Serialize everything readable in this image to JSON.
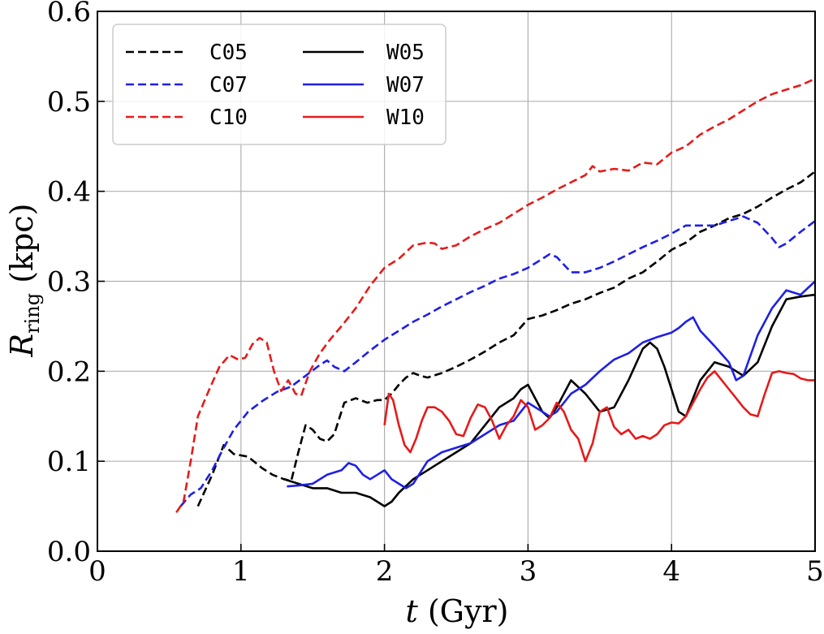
{
  "chart_data": {
    "type": "line",
    "title": "",
    "xlabel": "t (Gyr)",
    "ylabel": "R_ring (kpc)",
    "xlim": [
      0,
      5
    ],
    "ylim": [
      0.0,
      0.6
    ],
    "grid": true,
    "legend_position": "top-left",
    "x_ticks": [
      0,
      1,
      2,
      3,
      4,
      5
    ],
    "y_ticks": [
      0.0,
      0.1,
      0.2,
      0.3,
      0.4,
      0.5,
      0.6
    ],
    "x_tick_labels": [
      "0",
      "1",
      "2",
      "3",
      "4",
      "5"
    ],
    "y_tick_labels": [
      "0.0",
      "0.1",
      "0.2",
      "0.3",
      "0.4",
      "0.5",
      "0.6"
    ],
    "x_axis_label": {
      "italic": "t",
      "rest": " (Gyr)"
    },
    "y_axis_label": {
      "italic": "R",
      "subscript": "ring",
      "rest": " (kpc)"
    },
    "series": [
      {
        "name": "C05",
        "color": "#000000",
        "dash": true,
        "x": [
          0.7,
          0.8,
          0.88,
          0.95,
          1.05,
          1.15,
          1.22,
          1.3,
          1.35,
          1.4,
          1.45,
          1.5,
          1.55,
          1.6,
          1.65,
          1.72,
          1.8,
          1.88,
          1.95,
          2.0,
          2.05,
          2.1,
          2.15,
          2.2,
          2.25,
          2.3,
          2.4,
          2.5,
          2.6,
          2.7,
          2.8,
          2.9,
          3.0,
          3.1,
          3.2,
          3.3,
          3.4,
          3.5,
          3.6,
          3.7,
          3.8,
          3.9,
          4.0,
          4.1,
          4.2,
          4.3,
          4.4,
          4.5,
          4.6,
          4.7,
          4.8,
          4.9,
          5.0
        ],
        "values": [
          0.05,
          0.085,
          0.118,
          0.108,
          0.105,
          0.092,
          0.085,
          0.08,
          0.078,
          0.11,
          0.14,
          0.135,
          0.125,
          0.122,
          0.13,
          0.165,
          0.17,
          0.165,
          0.168,
          0.168,
          0.175,
          0.185,
          0.193,
          0.198,
          0.195,
          0.193,
          0.198,
          0.205,
          0.213,
          0.222,
          0.232,
          0.24,
          0.258,
          0.262,
          0.268,
          0.275,
          0.28,
          0.287,
          0.293,
          0.303,
          0.31,
          0.322,
          0.335,
          0.343,
          0.355,
          0.362,
          0.37,
          0.375,
          0.383,
          0.393,
          0.402,
          0.41,
          0.422
        ]
      },
      {
        "name": "C07",
        "color": "#1f1fe6",
        "dash": true,
        "x": [
          0.58,
          0.65,
          0.72,
          0.8,
          0.88,
          0.95,
          1.05,
          1.15,
          1.25,
          1.35,
          1.45,
          1.55,
          1.6,
          1.65,
          1.72,
          1.8,
          1.9,
          2.0,
          2.1,
          2.2,
          2.3,
          2.4,
          2.5,
          2.6,
          2.7,
          2.8,
          2.9,
          3.0,
          3.1,
          3.15,
          3.2,
          3.3,
          3.4,
          3.5,
          3.6,
          3.7,
          3.8,
          3.9,
          4.0,
          4.1,
          4.2,
          4.3,
          4.4,
          4.5,
          4.6,
          4.7,
          4.75,
          4.8,
          4.9,
          5.0
        ],
        "values": [
          0.05,
          0.063,
          0.07,
          0.09,
          0.115,
          0.135,
          0.155,
          0.167,
          0.177,
          0.183,
          0.195,
          0.207,
          0.212,
          0.205,
          0.2,
          0.21,
          0.223,
          0.235,
          0.245,
          0.255,
          0.263,
          0.272,
          0.28,
          0.288,
          0.295,
          0.303,
          0.308,
          0.315,
          0.325,
          0.33,
          0.327,
          0.31,
          0.31,
          0.315,
          0.322,
          0.33,
          0.338,
          0.345,
          0.353,
          0.362,
          0.362,
          0.362,
          0.367,
          0.372,
          0.365,
          0.348,
          0.338,
          0.342,
          0.355,
          0.367
        ]
      },
      {
        "name": "C10",
        "color": "#e61a1a",
        "dash": true,
        "x": [
          0.55,
          0.6,
          0.65,
          0.7,
          0.78,
          0.85,
          0.92,
          0.98,
          1.03,
          1.08,
          1.13,
          1.18,
          1.23,
          1.28,
          1.33,
          1.38,
          1.42,
          1.48,
          1.55,
          1.62,
          1.7,
          1.8,
          1.9,
          2.0,
          2.1,
          2.2,
          2.3,
          2.35,
          2.4,
          2.5,
          2.6,
          2.7,
          2.8,
          2.9,
          3.0,
          3.1,
          3.2,
          3.3,
          3.4,
          3.45,
          3.5,
          3.6,
          3.7,
          3.8,
          3.9,
          4.0,
          4.1,
          4.2,
          4.3,
          4.4,
          4.5,
          4.6,
          4.7,
          4.8,
          4.9,
          5.0
        ],
        "values": [
          0.043,
          0.055,
          0.1,
          0.15,
          0.18,
          0.205,
          0.218,
          0.213,
          0.215,
          0.23,
          0.237,
          0.232,
          0.2,
          0.178,
          0.19,
          0.175,
          0.173,
          0.2,
          0.22,
          0.235,
          0.25,
          0.27,
          0.295,
          0.315,
          0.325,
          0.34,
          0.343,
          0.342,
          0.336,
          0.34,
          0.35,
          0.358,
          0.365,
          0.375,
          0.385,
          0.393,
          0.402,
          0.41,
          0.418,
          0.428,
          0.422,
          0.425,
          0.423,
          0.432,
          0.43,
          0.443,
          0.45,
          0.463,
          0.472,
          0.48,
          0.49,
          0.5,
          0.508,
          0.513,
          0.518,
          0.525
        ]
      },
      {
        "name": "W05",
        "color": "#000000",
        "dash": false,
        "x": [
          1.3,
          1.4,
          1.5,
          1.6,
          1.7,
          1.8,
          1.9,
          2.0,
          2.05,
          2.1,
          2.2,
          2.3,
          2.4,
          2.5,
          2.6,
          2.7,
          2.8,
          2.9,
          2.95,
          3.0,
          3.05,
          3.1,
          3.15,
          3.2,
          3.3,
          3.4,
          3.5,
          3.6,
          3.7,
          3.8,
          3.85,
          3.9,
          3.95,
          4.0,
          4.05,
          4.1,
          4.2,
          4.3,
          4.4,
          4.45,
          4.5,
          4.6,
          4.7,
          4.8,
          4.9,
          5.0
        ],
        "values": [
          0.08,
          0.075,
          0.07,
          0.07,
          0.065,
          0.065,
          0.06,
          0.05,
          0.055,
          0.065,
          0.08,
          0.09,
          0.1,
          0.11,
          0.12,
          0.14,
          0.16,
          0.17,
          0.18,
          0.185,
          0.17,
          0.155,
          0.148,
          0.16,
          0.19,
          0.175,
          0.155,
          0.16,
          0.19,
          0.225,
          0.232,
          0.225,
          0.205,
          0.18,
          0.155,
          0.15,
          0.19,
          0.21,
          0.205,
          0.2,
          0.195,
          0.21,
          0.25,
          0.28,
          0.283,
          0.285
        ]
      },
      {
        "name": "W07",
        "color": "#1f1fe6",
        "dash": false,
        "x": [
          1.32,
          1.4,
          1.5,
          1.6,
          1.7,
          1.75,
          1.8,
          1.85,
          1.9,
          1.95,
          2.0,
          2.05,
          2.1,
          2.15,
          2.2,
          2.3,
          2.4,
          2.5,
          2.6,
          2.7,
          2.8,
          2.9,
          3.0,
          3.1,
          3.15,
          3.2,
          3.3,
          3.4,
          3.5,
          3.6,
          3.7,
          3.8,
          3.9,
          4.0,
          4.05,
          4.1,
          4.15,
          4.2,
          4.3,
          4.4,
          4.45,
          4.5,
          4.6,
          4.7,
          4.8,
          4.9,
          5.0
        ],
        "values": [
          0.072,
          0.073,
          0.075,
          0.085,
          0.09,
          0.098,
          0.095,
          0.085,
          0.08,
          0.085,
          0.09,
          0.08,
          0.075,
          0.07,
          0.075,
          0.1,
          0.11,
          0.115,
          0.12,
          0.13,
          0.14,
          0.145,
          0.165,
          0.155,
          0.15,
          0.155,
          0.175,
          0.185,
          0.2,
          0.213,
          0.22,
          0.232,
          0.238,
          0.243,
          0.248,
          0.255,
          0.26,
          0.245,
          0.228,
          0.21,
          0.19,
          0.195,
          0.24,
          0.27,
          0.29,
          0.285,
          0.3
        ]
      },
      {
        "name": "W10",
        "color": "#e61a1a",
        "dash": false,
        "x": [
          2.0,
          2.03,
          2.06,
          2.1,
          2.14,
          2.18,
          2.22,
          2.26,
          2.3,
          2.35,
          2.4,
          2.45,
          2.5,
          2.55,
          2.6,
          2.65,
          2.7,
          2.75,
          2.8,
          2.85,
          2.9,
          2.95,
          3.0,
          3.05,
          3.1,
          3.15,
          3.2,
          3.25,
          3.3,
          3.35,
          3.4,
          3.45,
          3.5,
          3.55,
          3.6,
          3.65,
          3.7,
          3.75,
          3.8,
          3.85,
          3.9,
          3.95,
          4.0,
          4.05,
          4.1,
          4.15,
          4.2,
          4.25,
          4.3,
          4.35,
          4.4,
          4.45,
          4.5,
          4.55,
          4.6,
          4.65,
          4.7,
          4.75,
          4.8,
          4.85,
          4.9,
          4.95,
          5.0
        ],
        "values": [
          0.14,
          0.175,
          0.168,
          0.14,
          0.118,
          0.11,
          0.125,
          0.145,
          0.16,
          0.16,
          0.155,
          0.145,
          0.13,
          0.128,
          0.148,
          0.163,
          0.16,
          0.145,
          0.125,
          0.14,
          0.15,
          0.168,
          0.16,
          0.135,
          0.14,
          0.148,
          0.165,
          0.155,
          0.135,
          0.125,
          0.1,
          0.12,
          0.155,
          0.16,
          0.138,
          0.13,
          0.135,
          0.125,
          0.128,
          0.125,
          0.13,
          0.14,
          0.143,
          0.142,
          0.15,
          0.165,
          0.18,
          0.193,
          0.2,
          0.19,
          0.18,
          0.17,
          0.16,
          0.152,
          0.15,
          0.175,
          0.198,
          0.2,
          0.198,
          0.197,
          0.192,
          0.19,
          0.19
        ]
      }
    ]
  }
}
